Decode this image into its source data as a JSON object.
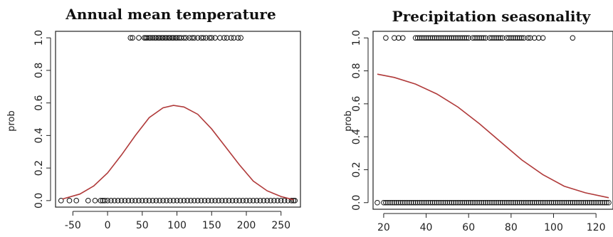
{
  "colors": {
    "curve": "#b03a3a",
    "points": "#111111",
    "axes": "#222222"
  },
  "chart_data": [
    {
      "type": "scatter",
      "title": "Annual mean temperature",
      "xlabel": "",
      "ylabel": "prob",
      "xlim": [
        -75,
        278
      ],
      "ylim": [
        -0.04,
        1.04
      ],
      "grid": false,
      "x_ticks": [
        -50,
        0,
        50,
        100,
        150,
        200,
        250
      ],
      "y_ticks": [
        0.0,
        0.2,
        0.4,
        0.6,
        0.8,
        1.0
      ],
      "x_tick_labels": [
        "-50",
        "0",
        "50",
        "100",
        "150",
        "200",
        "250"
      ],
      "y_tick_labels": [
        "0.0",
        "0.2",
        "0.4",
        "0.6",
        "0.8",
        "1.0"
      ],
      "points_y1": [
        33,
        36,
        45,
        53,
        55,
        57,
        60,
        62,
        65,
        68,
        70,
        73,
        75,
        78,
        80,
        83,
        85,
        88,
        90,
        93,
        95,
        98,
        100,
        103,
        106,
        110,
        113,
        118,
        122,
        125,
        130,
        135,
        138,
        142,
        147,
        150,
        155,
        162,
        168,
        172,
        178,
        182,
        188,
        192
      ],
      "points_y0": [
        -67,
        -55,
        -45,
        -28,
        -18,
        -10,
        -7,
        -4,
        0,
        5,
        10,
        15,
        20,
        25,
        30,
        35,
        40,
        45,
        50,
        55,
        60,
        65,
        70,
        75,
        80,
        85,
        90,
        95,
        100,
        105,
        110,
        115,
        120,
        125,
        130,
        135,
        140,
        145,
        150,
        155,
        160,
        165,
        170,
        175,
        180,
        185,
        190,
        195,
        200,
        205,
        210,
        215,
        220,
        225,
        230,
        235,
        240,
        245,
        250,
        255,
        260,
        265,
        268,
        270
      ],
      "curve_x": [
        -65,
        -40,
        -20,
        0,
        20,
        40,
        60,
        80,
        95,
        110,
        130,
        150,
        170,
        190,
        210,
        230,
        250,
        268
      ],
      "curve_y": [
        0.01,
        0.04,
        0.09,
        0.17,
        0.28,
        0.4,
        0.51,
        0.57,
        0.585,
        0.575,
        0.53,
        0.44,
        0.33,
        0.22,
        0.12,
        0.06,
        0.025,
        0.005
      ]
    },
    {
      "type": "scatter",
      "title": "Precipitation seasonality",
      "xlabel": "",
      "ylabel": "prob",
      "xlim": [
        15,
        128
      ],
      "ylim": [
        -0.04,
        1.04
      ],
      "grid": false,
      "x_ticks": [
        20,
        40,
        60,
        80,
        100,
        120
      ],
      "y_ticks": [
        0.0,
        0.2,
        0.4,
        0.6,
        0.8,
        1.0
      ],
      "x_tick_labels": [
        "20",
        "40",
        "60",
        "80",
        "100",
        "120"
      ],
      "y_tick_labels": [
        "0.0",
        "0.2",
        "0.4",
        "0.6",
        "0.8",
        "1.0"
      ],
      "points_y1": [
        21,
        25,
        27,
        29,
        35,
        36,
        37,
        38,
        39,
        40,
        41,
        42,
        43,
        44,
        45,
        46,
        47,
        48,
        49,
        50,
        51,
        52,
        53,
        54,
        55,
        56,
        57,
        58,
        59,
        60,
        62,
        63,
        64,
        65,
        66,
        67,
        68,
        70,
        71,
        72,
        73,
        74,
        75,
        76,
        78,
        79,
        80,
        81,
        82,
        83,
        84,
        85,
        86,
        88,
        89,
        91,
        93,
        95,
        109
      ],
      "points_y0": [
        17,
        20,
        21,
        22,
        23,
        24,
        25,
        26,
        27,
        28,
        29,
        30,
        31,
        32,
        33,
        34,
        35,
        36,
        37,
        38,
        39,
        40,
        41,
        42,
        43,
        44,
        45,
        46,
        47,
        48,
        49,
        50,
        51,
        52,
        53,
        54,
        55,
        56,
        57,
        58,
        59,
        60,
        61,
        62,
        63,
        64,
        65,
        66,
        67,
        68,
        69,
        70,
        71,
        72,
        73,
        74,
        75,
        76,
        77,
        78,
        79,
        80,
        81,
        82,
        83,
        84,
        85,
        86,
        87,
        88,
        89,
        90,
        91,
        92,
        93,
        94,
        95,
        96,
        97,
        98,
        99,
        100,
        101,
        102,
        103,
        104,
        105,
        106,
        107,
        108,
        109,
        110,
        111,
        112,
        113,
        114,
        115,
        116,
        117,
        118,
        119,
        120,
        121,
        122,
        123,
        124,
        125,
        126
      ],
      "curve_x": [
        17,
        25,
        35,
        45,
        55,
        65,
        75,
        85,
        95,
        105,
        115,
        126
      ],
      "curve_y": [
        0.78,
        0.76,
        0.72,
        0.66,
        0.58,
        0.48,
        0.37,
        0.26,
        0.17,
        0.1,
        0.06,
        0.03
      ]
    }
  ]
}
